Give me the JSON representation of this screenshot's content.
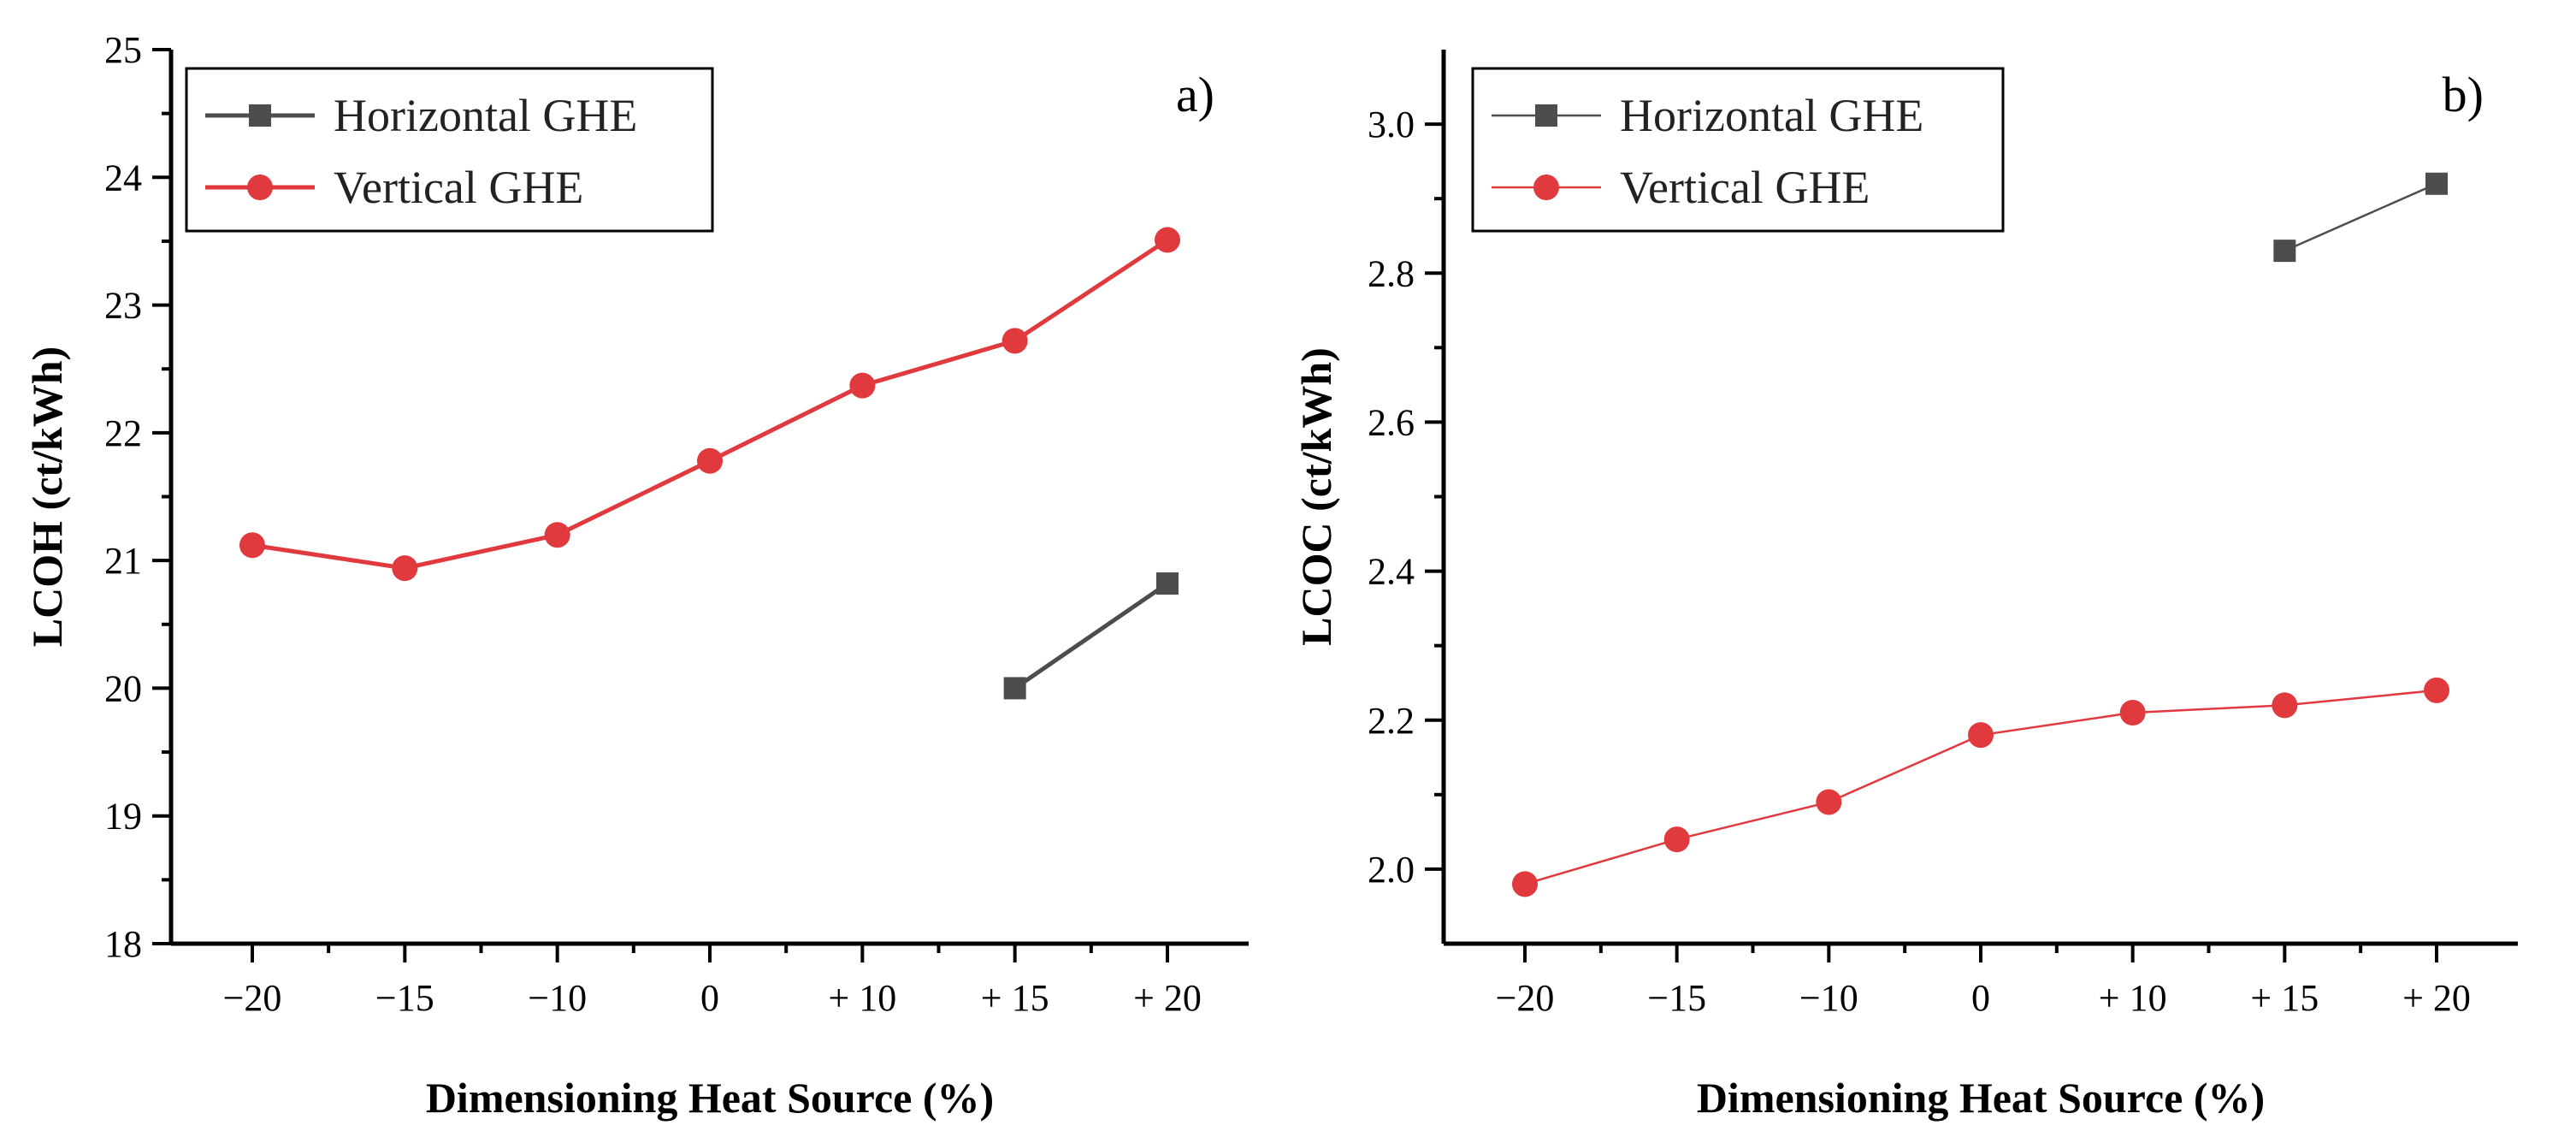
{
  "chart_data": [
    {
      "type": "line",
      "panel_label": "a)",
      "categories": [
        "−20",
        "−15",
        "−10",
        "0",
        "+ 10",
        "+ 15",
        "+ 20"
      ],
      "xlabel": "Dimensioning Heat Source (%)",
      "ylabel": "LCOH (ct/kWh)",
      "ylim": [
        18,
        25
      ],
      "yticks": [
        "18",
        "19",
        "20",
        "21",
        "22",
        "23",
        "24",
        "25"
      ],
      "legend_position": "top-left",
      "grid": false,
      "series": [
        {
          "name": "Horizontal GHE",
          "color": "#4d4d4d",
          "marker": "square",
          "values": [
            null,
            null,
            null,
            null,
            null,
            20.0,
            20.82
          ]
        },
        {
          "name": "Vertical GHE",
          "color": "#e0393e",
          "marker": "circle",
          "values": [
            21.12,
            20.94,
            21.2,
            21.78,
            22.37,
            22.72,
            23.51
          ]
        }
      ]
    },
    {
      "type": "line",
      "panel_label": "b)",
      "categories": [
        "−20",
        "−15",
        "−10",
        "0",
        "+ 10",
        "+ 15",
        "+ 20"
      ],
      "xlabel": "Dimensioning Heat Source (%)",
      "ylabel": "LCOC (ct/kWh)",
      "ylim": [
        1.9,
        3.1
      ],
      "yticks": [
        "2.0",
        "2.2",
        "2.4",
        "2.6",
        "2.8",
        "3.0"
      ],
      "legend_position": "top-left",
      "grid": false,
      "series": [
        {
          "name": "Horizontal GHE",
          "color": "#4d4d4d",
          "marker": "square",
          "values": [
            null,
            null,
            null,
            null,
            null,
            2.83,
            2.92
          ]
        },
        {
          "name": "Vertical GHE",
          "color": "#e0393e",
          "marker": "circle",
          "values": [
            1.98,
            2.04,
            2.09,
            2.18,
            2.21,
            2.22,
            2.24
          ]
        }
      ]
    }
  ]
}
